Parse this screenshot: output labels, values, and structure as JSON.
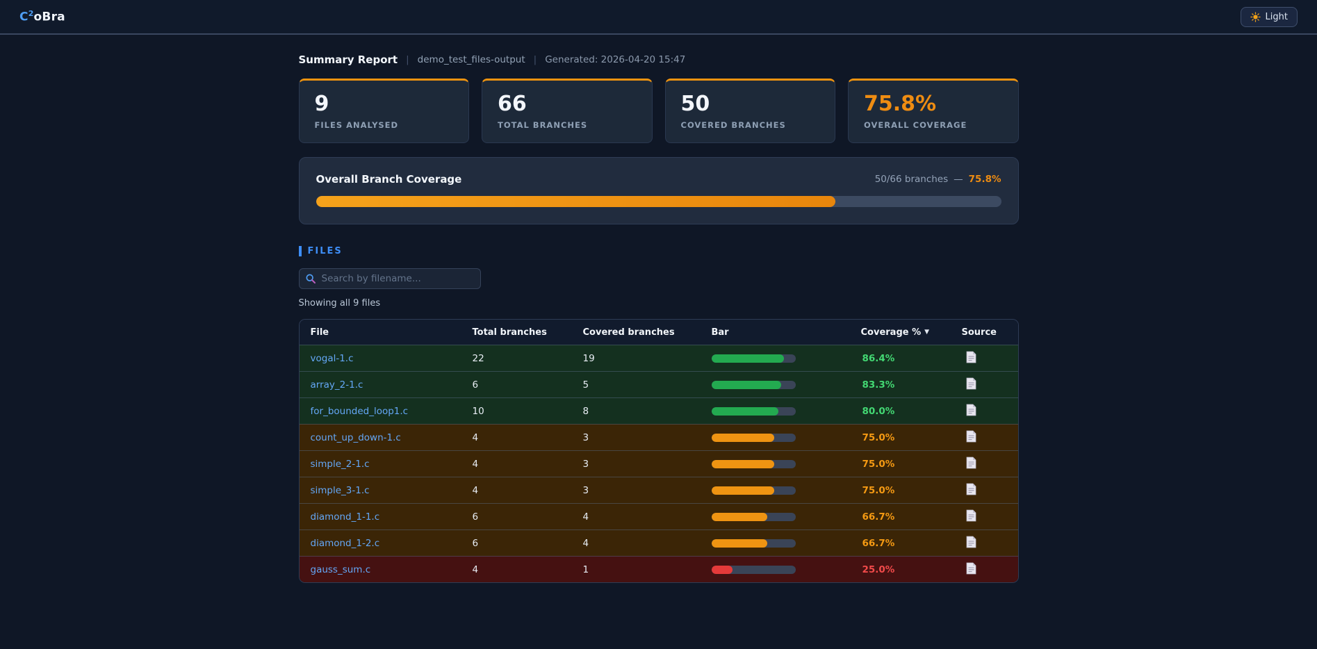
{
  "app": {
    "logo": {
      "c": "C",
      "sup": "2",
      "rest": "oBra"
    },
    "theme_toggle_label": "Light"
  },
  "report": {
    "title": "Summary Report",
    "separator": "|",
    "dataset": "demo_test_files-output",
    "generated": "Generated: 2026-04-20 15:47"
  },
  "stats": [
    {
      "value": "9",
      "label": "FILES ANALYSED"
    },
    {
      "value": "66",
      "label": "TOTAL BRANCHES"
    },
    {
      "value": "50",
      "label": "COVERED BRANCHES"
    },
    {
      "value": "75.8%",
      "label": "OVERALL COVERAGE"
    }
  ],
  "overall": {
    "title": "Overall Branch Coverage",
    "summary": "50/66 branches",
    "dash": "—",
    "percent_label": "75.8%",
    "percent": 75.8
  },
  "files_section": {
    "heading": "FILES",
    "search_placeholder": "Search by filename...",
    "showing": "Showing all 9 files"
  },
  "table": {
    "columns": {
      "file": "File",
      "total": "Total branches",
      "covered": "Covered branches",
      "bar": "Bar",
      "coverage": "Coverage %",
      "source": "Source"
    },
    "sort_arrow": "▼",
    "rows": [
      {
        "file": "vogal-1.c",
        "total": "22",
        "covered": "19",
        "percent": 86.4,
        "coverage": "86.4%",
        "level": "good"
      },
      {
        "file": "array_2-1.c",
        "total": "6",
        "covered": "5",
        "percent": 83.3,
        "coverage": "83.3%",
        "level": "good"
      },
      {
        "file": "for_bounded_loop1.c",
        "total": "10",
        "covered": "8",
        "percent": 80.0,
        "coverage": "80.0%",
        "level": "good"
      },
      {
        "file": "count_up_down-1.c",
        "total": "4",
        "covered": "3",
        "percent": 75.0,
        "coverage": "75.0%",
        "level": "warn"
      },
      {
        "file": "simple_2-1.c",
        "total": "4",
        "covered": "3",
        "percent": 75.0,
        "coverage": "75.0%",
        "level": "warn"
      },
      {
        "file": "simple_3-1.c",
        "total": "4",
        "covered": "3",
        "percent": 75.0,
        "coverage": "75.0%",
        "level": "warn"
      },
      {
        "file": "diamond_1-1.c",
        "total": "6",
        "covered": "4",
        "percent": 66.7,
        "coverage": "66.7%",
        "level": "warn"
      },
      {
        "file": "diamond_1-2.c",
        "total": "6",
        "covered": "4",
        "percent": 66.7,
        "coverage": "66.7%",
        "level": "warn"
      },
      {
        "file": "gauss_sum.c",
        "total": "4",
        "covered": "1",
        "percent": 25.0,
        "coverage": "25.0%",
        "level": "bad"
      }
    ]
  },
  "icons": {
    "theme": "sun-icon",
    "search": "magnifier-icon",
    "source": "document-icon"
  },
  "colors": {
    "accent_orange": "#ee9310",
    "good_green": "#23aa50",
    "warn_orange": "#ef9412",
    "bad_red": "#e53a3a",
    "link_blue": "#64a7f6",
    "heading_blue": "#3e8ef7",
    "page_bg": "#0f1726"
  }
}
